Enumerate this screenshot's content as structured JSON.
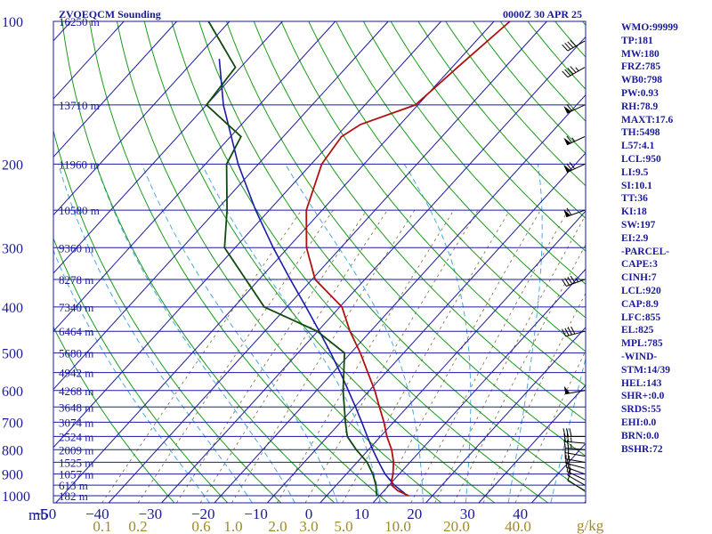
{
  "header": {
    "title": "ZVOEQCM Sounding",
    "time": "0000Z 30 APR 25"
  },
  "indices": [
    "WMO:99999",
    "TP:181",
    "MW:180",
    "FRZ:785",
    "WB0:798",
    "PW:0.93",
    "RH:78.9",
    "MAXT:17.6",
    "TH:5498",
    "L57:4.1",
    "LCL:950",
    "LI:9.5",
    "SI:10.1",
    "TT:36",
    "KI:18",
    "SW:197",
    "EI:2.9",
    "-PARCEL-",
    "CAPE:3",
    "CINH:7",
    "LCL:920",
    "CAP:8.9",
    "LFC:855",
    "EL:825",
    "MPL:785",
    "-WIND-",
    "STM:14/39",
    "HEL:143",
    "SHR+:0.0",
    "SRDS:55",
    "EHI:0.0",
    "BRN:0.0",
    "BSHR:72"
  ],
  "colors": {
    "isobar": "#1a1aa0",
    "isotherm": "#1a1aa0",
    "dry_adiabat": "#1a9a1a",
    "moist_adiabat": "#4aaae0",
    "mixing_ratio": "#7a6a3a",
    "temperature": "#b01010",
    "dewpoint": "#104a10",
    "parcel": "#1a1aa8",
    "wind": "#000000",
    "text": "#1a1a9a",
    "mr_text": "#a08a2a"
  },
  "chart_data": {
    "type": "skew-t",
    "axis_units": {
      "pressure": "mb",
      "mixing_ratio": "g/kg"
    },
    "temperature_ticks": [
      -50,
      -40,
      -30,
      -20,
      -10,
      0,
      10,
      20,
      30,
      40
    ],
    "temperature_labels": [
      "−50",
      "−40",
      "−30",
      "−20",
      "−10",
      "0",
      "10",
      "20",
      "30",
      "40"
    ],
    "pressure_ticks": [
      100,
      200,
      300,
      400,
      500,
      600,
      700,
      800,
      900,
      1000
    ],
    "height_labels": [
      {
        "p": 100,
        "label": "16250 m"
      },
      {
        "p": 150,
        "label": "13710 m"
      },
      {
        "p": 200,
        "label": "11960 m"
      },
      {
        "p": 250,
        "label": "10580 m"
      },
      {
        "p": 300,
        "label": "9360 m"
      },
      {
        "p": 350,
        "label": "8278 m"
      },
      {
        "p": 400,
        "label": "7340 m"
      },
      {
        "p": 450,
        "label": "6464 m"
      },
      {
        "p": 500,
        "label": "5680 m"
      },
      {
        "p": 550,
        "label": "4942 m"
      },
      {
        "p": 600,
        "label": "4268 m"
      },
      {
        "p": 650,
        "label": "3648 m"
      },
      {
        "p": 700,
        "label": "3074 m"
      },
      {
        "p": 750,
        "label": "2524 m"
      },
      {
        "p": 800,
        "label": "2009 m"
      },
      {
        "p": 850,
        "label": "1525 m"
      },
      {
        "p": 900,
        "label": "1057 m"
      },
      {
        "p": 950,
        "label": "613 m"
      },
      {
        "p": 1000,
        "label": "182 m"
      }
    ],
    "mixing_ratio_labels": [
      "0.1",
      "0.2",
      "0.6",
      "1.0",
      "2.0",
      "3.0",
      "5.0",
      "10.0",
      "20.0",
      "40.0"
    ],
    "mixing_ratio_values": [
      0.1,
      0.2,
      0.6,
      1.0,
      2.0,
      3.0,
      5.0,
      10.0,
      20.0,
      40.0
    ],
    "temperature_profile": [
      {
        "p": 1000,
        "t": 15.5
      },
      {
        "p": 975,
        "t": 12.5
      },
      {
        "p": 950,
        "t": 10.5
      },
      {
        "p": 925,
        "t": 9.6
      },
      {
        "p": 900,
        "t": 8.8
      },
      {
        "p": 850,
        "t": 6.9
      },
      {
        "p": 800,
        "t": 4.4
      },
      {
        "p": 750,
        "t": 1.2
      },
      {
        "p": 700,
        "t": -1.8
      },
      {
        "p": 650,
        "t": -5.3
      },
      {
        "p": 600,
        "t": -9.0
      },
      {
        "p": 550,
        "t": -13.4
      },
      {
        "p": 500,
        "t": -18.2
      },
      {
        "p": 450,
        "t": -23.9
      },
      {
        "p": 400,
        "t": -29.6
      },
      {
        "p": 350,
        "t": -39.4
      },
      {
        "p": 300,
        "t": -46.5
      },
      {
        "p": 250,
        "t": -53.0
      },
      {
        "p": 200,
        "t": -58.0
      },
      {
        "p": 175,
        "t": -59.0
      },
      {
        "p": 165,
        "t": -57.5
      },
      {
        "p": 150,
        "t": -50.5
      },
      {
        "p": 125,
        "t": -49.0
      },
      {
        "p": 100,
        "t": -47.0
      }
    ],
    "dewpoint_profile": [
      {
        "p": 1000,
        "t": 9.5
      },
      {
        "p": 975,
        "t": 8.5
      },
      {
        "p": 950,
        "t": 7.5
      },
      {
        "p": 900,
        "t": 5.0
      },
      {
        "p": 850,
        "t": 1.9
      },
      {
        "p": 800,
        "t": -2.3
      },
      {
        "p": 750,
        "t": -6.3
      },
      {
        "p": 700,
        "t": -9.1
      },
      {
        "p": 600,
        "t": -15.0
      },
      {
        "p": 500,
        "t": -21.2
      },
      {
        "p": 450,
        "t": -30.1
      },
      {
        "p": 400,
        "t": -44.3
      },
      {
        "p": 300,
        "t": -62.0
      },
      {
        "p": 250,
        "t": -68.0
      },
      {
        "p": 200,
        "t": -76.0
      },
      {
        "p": 175,
        "t": -78.0
      },
      {
        "p": 150,
        "t": -90.0
      },
      {
        "p": 125,
        "t": -91.0
      },
      {
        "p": 100,
        "t": -104.0
      }
    ],
    "parcel_profile": [
      {
        "p": 990,
        "t": 14.5
      },
      {
        "p": 950,
        "t": 11.0
      },
      {
        "p": 920,
        "t": 8.8
      },
      {
        "p": 900,
        "t": 7.3
      },
      {
        "p": 850,
        "t": 4.1
      },
      {
        "p": 800,
        "t": 0.8
      },
      {
        "p": 750,
        "t": -2.5
      },
      {
        "p": 700,
        "t": -6.0
      },
      {
        "p": 650,
        "t": -9.8
      },
      {
        "p": 600,
        "t": -14.0
      },
      {
        "p": 550,
        "t": -18.6
      },
      {
        "p": 500,
        "t": -23.8
      },
      {
        "p": 450,
        "t": -29.7
      },
      {
        "p": 400,
        "t": -36.4
      },
      {
        "p": 350,
        "t": -44.1
      },
      {
        "p": 300,
        "t": -52.8
      },
      {
        "p": 250,
        "t": -62.6
      },
      {
        "p": 200,
        "t": -73.8
      },
      {
        "p": 150,
        "t": -86.8
      },
      {
        "p": 120,
        "t": -95.5
      }
    ],
    "wind_barbs": [
      {
        "p": 975,
        "dir": 300,
        "kt": 10
      },
      {
        "p": 950,
        "dir": 300,
        "kt": 10
      },
      {
        "p": 925,
        "dir": 295,
        "kt": 15
      },
      {
        "p": 900,
        "dir": 290,
        "kt": 15
      },
      {
        "p": 875,
        "dir": 285,
        "kt": 20
      },
      {
        "p": 850,
        "dir": 280,
        "kt": 20
      },
      {
        "p": 825,
        "dir": 280,
        "kt": 20
      },
      {
        "p": 800,
        "dir": 275,
        "kt": 25
      },
      {
        "p": 775,
        "dir": 275,
        "kt": 25
      },
      {
        "p": 750,
        "dir": 270,
        "kt": 30
      },
      {
        "p": 600,
        "dir": 260,
        "kt": 50
      },
      {
        "p": 450,
        "dir": 255,
        "kt": 40
      },
      {
        "p": 350,
        "dir": 250,
        "kt": 45
      },
      {
        "p": 250,
        "dir": 250,
        "kt": 60
      },
      {
        "p": 200,
        "dir": 245,
        "kt": 70
      },
      {
        "p": 175,
        "dir": 245,
        "kt": 65
      },
      {
        "p": 150,
        "dir": 245,
        "kt": 60
      },
      {
        "p": 125,
        "dir": 240,
        "kt": 45
      },
      {
        "p": 110,
        "dir": 240,
        "kt": 40
      }
    ]
  }
}
